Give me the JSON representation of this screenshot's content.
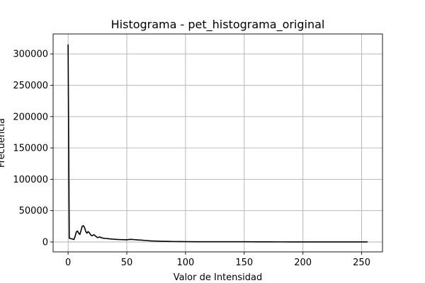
{
  "chart_data": {
    "type": "line",
    "title": "Histograma - pet_histograma_original",
    "xlabel": "Valor de Intensidad",
    "ylabel": "Frecuencia",
    "xlim": [
      -12.75,
      267.75
    ],
    "ylim": [
      -15800,
      331800
    ],
    "xticks": [
      0,
      50,
      100,
      150,
      200,
      250
    ],
    "yticks": [
      0,
      50000,
      100000,
      150000,
      200000,
      250000,
      300000
    ],
    "xtick_labels": [
      "0",
      "50",
      "100",
      "150",
      "200",
      "250"
    ],
    "ytick_labels": [
      "0",
      "50000",
      "100000",
      "150000",
      "200000",
      "250000",
      "300000"
    ],
    "grid": true,
    "color": "#000000",
    "series": [
      {
        "x": [
          0,
          1,
          2,
          3,
          4,
          5,
          6,
          7,
          8,
          9,
          10,
          11,
          12,
          13,
          14,
          15,
          16,
          17,
          18,
          19,
          20,
          21,
          22,
          23,
          24,
          25,
          26,
          27,
          28,
          29,
          30,
          31,
          32,
          33,
          34,
          35,
          36,
          37,
          38,
          39,
          40,
          42,
          44,
          46,
          48,
          50,
          52,
          54,
          56,
          58,
          60,
          62,
          64,
          66,
          68,
          70,
          75,
          80,
          85,
          90,
          95,
          100,
          110,
          120,
          130,
          140,
          145,
          150,
          160,
          170,
          180,
          190,
          200,
          210,
          220,
          230,
          240,
          250,
          255
        ],
        "y": [
          315000,
          6000,
          5500,
          5000,
          4500,
          4000,
          9000,
          16000,
          17500,
          14000,
          12000,
          18000,
          25000,
          26000,
          23000,
          17000,
          14000,
          16500,
          15000,
          12000,
          10000,
          10500,
          11500,
          10000,
          8500,
          7000,
          7500,
          8000,
          7000,
          6500,
          6000,
          5800,
          5600,
          5500,
          5300,
          5000,
          4900,
          4700,
          4500,
          4300,
          4200,
          4000,
          3800,
          3700,
          3600,
          3500,
          4000,
          4200,
          3800,
          3500,
          3200,
          3000,
          2700,
          2400,
          2100,
          1800,
          1400,
          1100,
          900,
          700,
          600,
          500,
          400,
          350,
          300,
          300,
          350,
          400,
          250,
          200,
          150,
          120,
          100,
          80,
          60,
          50,
          40,
          30,
          20
        ]
      }
    ]
  }
}
